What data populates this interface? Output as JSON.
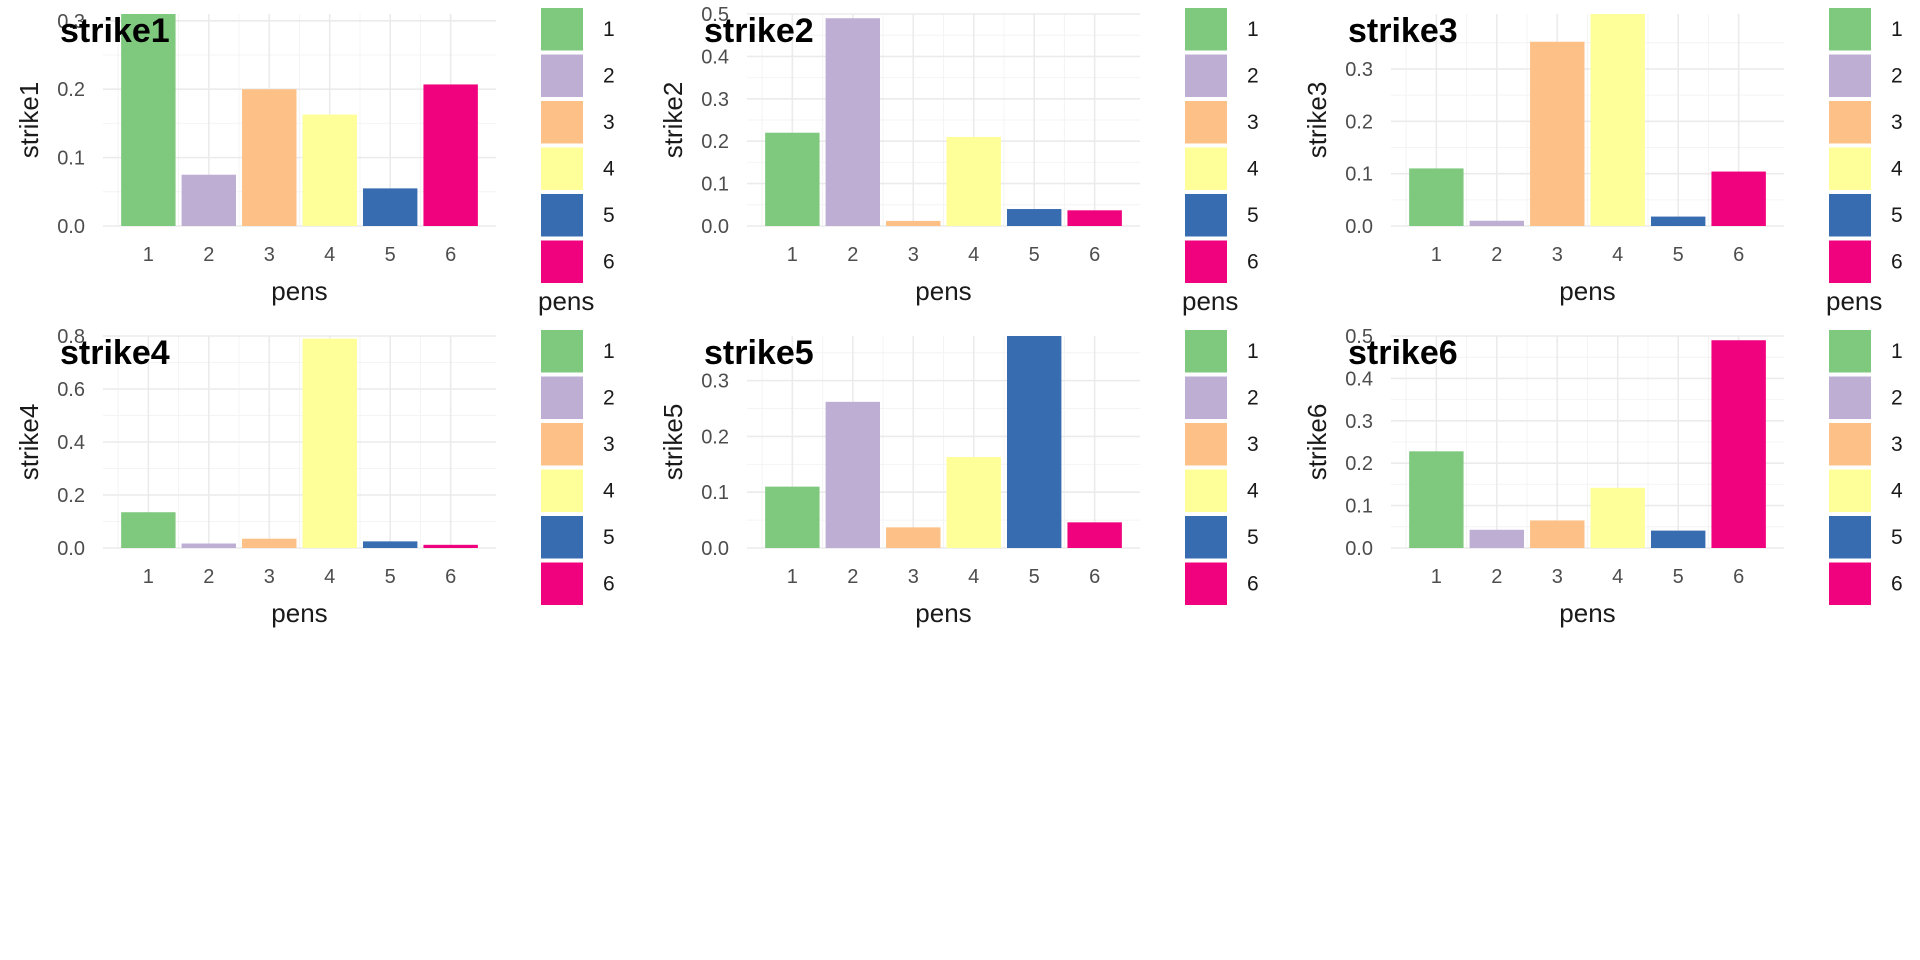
{
  "palette": [
    "#7fc97f",
    "#beaed4",
    "#fdc086",
    "#ffff99",
    "#386cb0",
    "#f0027f"
  ],
  "chart_data": [
    {
      "type": "bar",
      "title": "strike1",
      "xlabel": "pens",
      "ylabel": "strike1",
      "categories": [
        "1",
        "2",
        "3",
        "4",
        "5",
        "6"
      ],
      "values": [
        0.31,
        0.075,
        0.2,
        0.163,
        0.055,
        0.207
      ],
      "ylim": [
        0,
        0.31
      ],
      "yticks": [
        0,
        0.1,
        0.2,
        0.3
      ],
      "ytick_labels": [
        "0.0",
        "0.1",
        "0.2",
        "0.3"
      ],
      "legend": {
        "title": "pens",
        "labels": [
          "1",
          "2",
          "3",
          "4",
          "5",
          "6"
        ]
      }
    },
    {
      "type": "bar",
      "title": "strike2",
      "xlabel": "pens",
      "ylabel": "strike2",
      "categories": [
        "1",
        "2",
        "3",
        "4",
        "5",
        "6"
      ],
      "values": [
        0.22,
        0.49,
        0.012,
        0.21,
        0.04,
        0.037
      ],
      "ylim": [
        0,
        0.5
      ],
      "yticks": [
        0,
        0.1,
        0.2,
        0.3,
        0.4,
        0.5
      ],
      "ytick_labels": [
        "0.0",
        "0.1",
        "0.2",
        "0.3",
        "0.4",
        "0.5"
      ],
      "legend": {
        "title": "pens",
        "labels": [
          "1",
          "2",
          "3",
          "4",
          "5",
          "6"
        ]
      }
    },
    {
      "type": "bar",
      "title": "strike3",
      "xlabel": "pens",
      "ylabel": "strike3",
      "categories": [
        "1",
        "2",
        "3",
        "4",
        "5",
        "6"
      ],
      "values": [
        0.11,
        0.01,
        0.352,
        0.405,
        0.018,
        0.104
      ],
      "ylim": [
        0,
        0.405
      ],
      "yticks": [
        0,
        0.1,
        0.2,
        0.3
      ],
      "ytick_labels": [
        "0.0",
        "0.1",
        "0.2",
        "0.3"
      ],
      "legend": {
        "title": "pens",
        "labels": [
          "1",
          "2",
          "3",
          "4",
          "5",
          "6"
        ]
      }
    },
    {
      "type": "bar",
      "title": "strike4",
      "xlabel": "pens",
      "ylabel": "strike4",
      "categories": [
        "1",
        "2",
        "3",
        "4",
        "5",
        "6"
      ],
      "values": [
        0.135,
        0.017,
        0.035,
        0.79,
        0.025,
        0.012
      ],
      "ylim": [
        0,
        0.8
      ],
      "yticks": [
        0,
        0.2,
        0.4,
        0.6,
        0.8
      ],
      "ytick_labels": [
        "0.0",
        "0.2",
        "0.4",
        "0.6",
        "0.8"
      ],
      "legend": {
        "title": "",
        "labels": [
          "1",
          "2",
          "3",
          "4",
          "5",
          "6"
        ]
      }
    },
    {
      "type": "bar",
      "title": "strike5",
      "xlabel": "pens",
      "ylabel": "strike5",
      "categories": [
        "1",
        "2",
        "3",
        "4",
        "5",
        "6"
      ],
      "values": [
        0.11,
        0.262,
        0.037,
        0.163,
        0.38,
        0.046
      ],
      "ylim": [
        0,
        0.38
      ],
      "yticks": [
        0,
        0.1,
        0.2,
        0.3
      ],
      "ytick_labels": [
        "0.0",
        "0.1",
        "0.2",
        "0.3"
      ],
      "legend": {
        "title": "",
        "labels": [
          "1",
          "2",
          "3",
          "4",
          "5",
          "6"
        ]
      }
    },
    {
      "type": "bar",
      "title": "strike6",
      "xlabel": "pens",
      "ylabel": "strike6",
      "categories": [
        "1",
        "2",
        "3",
        "4",
        "5",
        "6"
      ],
      "values": [
        0.228,
        0.043,
        0.065,
        0.142,
        0.041,
        0.49
      ],
      "ylim": [
        0,
        0.5
      ],
      "yticks": [
        0,
        0.1,
        0.2,
        0.3,
        0.4,
        0.5
      ],
      "ytick_labels": [
        "0.0",
        "0.1",
        "0.2",
        "0.3",
        "0.4",
        "0.5"
      ],
      "legend": {
        "title": "",
        "labels": [
          "1",
          "2",
          "3",
          "4",
          "5",
          "6"
        ]
      }
    }
  ]
}
